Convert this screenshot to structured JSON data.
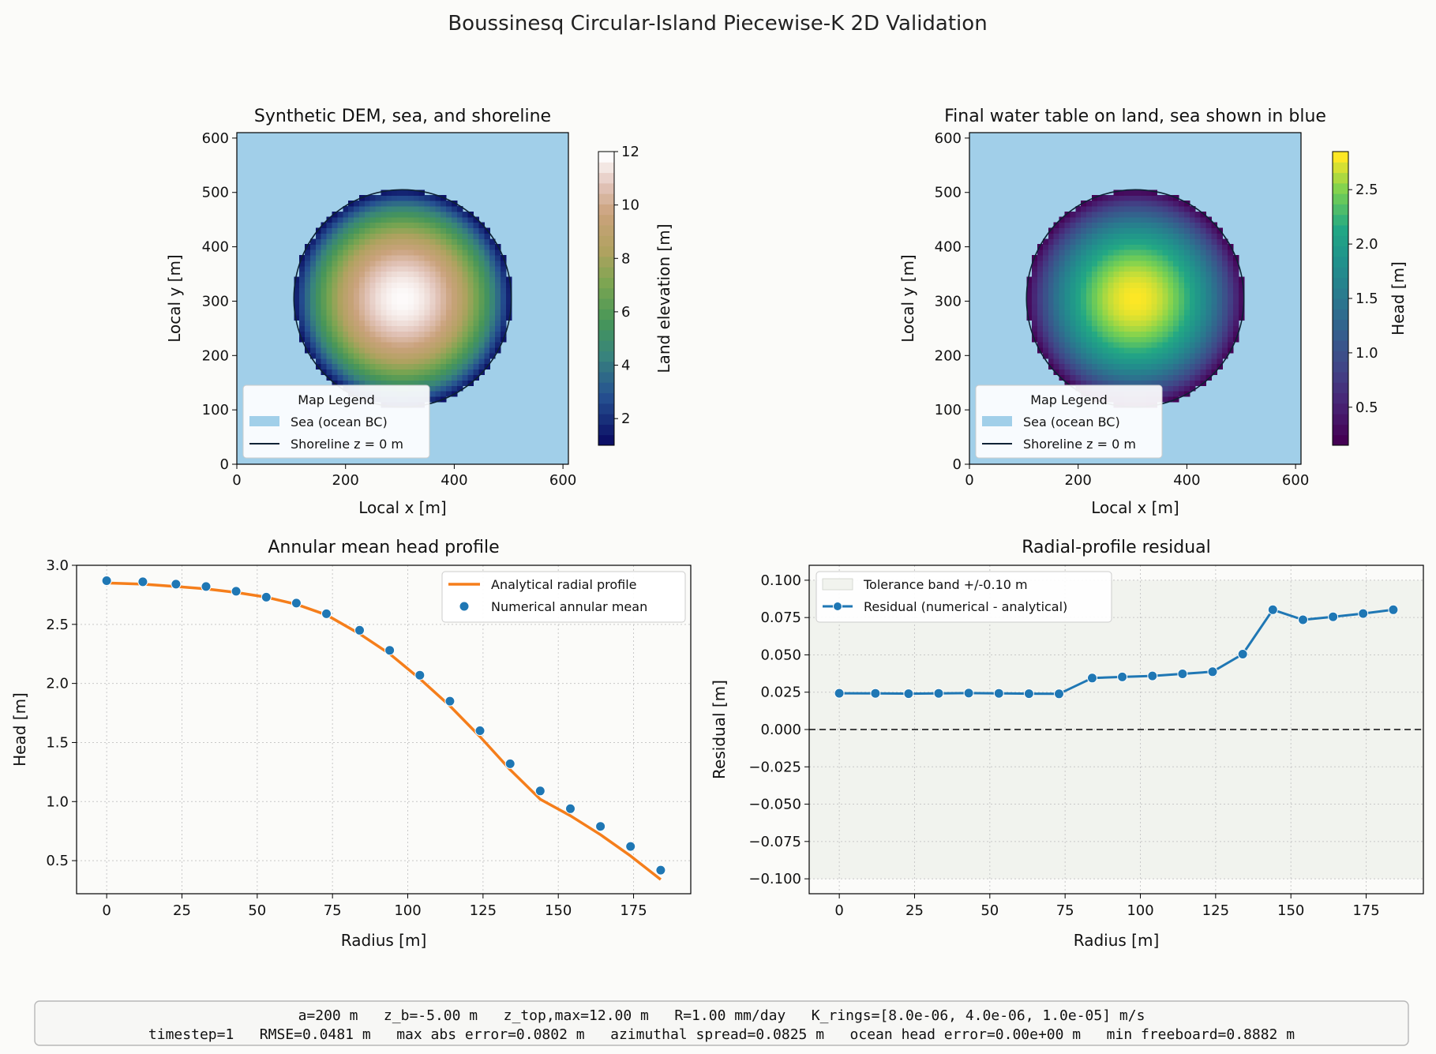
{
  "figure": {
    "title": "Boussinesq Circular-Island Piecewise-K 2D Validation",
    "background": "#fbfbf9"
  },
  "colors": {
    "sea": "#a1cfe9",
    "shoreline": "#0d2235",
    "analytical": "#f57e1b",
    "numerical": "#1f77b4",
    "zero_line": "#444444"
  },
  "legend_labels": {
    "map_title": "Map Legend",
    "sea": "Sea (ocean BC)",
    "shoreline": "Shoreline z = 0 m"
  },
  "chart_data": [
    {
      "type": "heatmap",
      "title": "Synthetic DEM, sea, and shoreline",
      "xlabel": "Local x [m]",
      "ylabel": "Local y [m]",
      "xlim": [
        0,
        610
      ],
      "ylim": [
        0,
        610
      ],
      "xticks": [
        0,
        200,
        400,
        600
      ],
      "yticks": [
        0,
        100,
        200,
        300,
        400,
        500,
        600
      ],
      "island": {
        "center": [
          305,
          305
        ],
        "radius": 200,
        "field": "Land elevation",
        "peak": 12.0,
        "edge": 1.0
      },
      "colorbar": {
        "label": "Land elevation [m]",
        "min": 1.0,
        "max": 12.0,
        "ticks": [
          2,
          4,
          6,
          8,
          10,
          12
        ],
        "colormap": "gist_earth"
      },
      "legend_position": "lower-left"
    },
    {
      "type": "heatmap",
      "title": "Final water table on land, sea shown in blue",
      "xlabel": "Local x [m]",
      "ylabel": "Local y [m]",
      "xlim": [
        0,
        610
      ],
      "ylim": [
        0,
        610
      ],
      "xticks": [
        0,
        200,
        400,
        600
      ],
      "yticks": [
        0,
        100,
        200,
        300,
        400,
        500,
        600
      ],
      "island": {
        "center": [
          305,
          305
        ],
        "radius": 200,
        "field": "Head",
        "peak": 2.85,
        "edge": 0.15
      },
      "colorbar": {
        "label": "Head [m]",
        "min": 0.15,
        "max": 2.85,
        "ticks": [
          0.5,
          1.0,
          1.5,
          2.0,
          2.5
        ],
        "colormap": "viridis"
      },
      "legend_position": "lower-left"
    },
    {
      "type": "line",
      "title": "Annular mean head profile",
      "xlabel": "Radius [m]",
      "ylabel": "Head [m]",
      "xlim": [
        -10,
        194
      ],
      "ylim": [
        0.22,
        3.0
      ],
      "xticks": [
        0,
        25,
        50,
        75,
        100,
        125,
        150,
        175
      ],
      "yticks": [
        0.5,
        1.0,
        1.5,
        2.0,
        2.5,
        3.0
      ],
      "grid": true,
      "legend_position": "top-right",
      "series": [
        {
          "name": "Analytical radial profile",
          "style": "line",
          "x": [
            0,
            12,
            23,
            33,
            43,
            53,
            63,
            73,
            84,
            94,
            104,
            114,
            124,
            134,
            144,
            154,
            164,
            174,
            184
          ],
          "y": [
            2.85,
            2.84,
            2.82,
            2.8,
            2.77,
            2.73,
            2.67,
            2.58,
            2.42,
            2.25,
            2.04,
            1.81,
            1.55,
            1.27,
            1.02,
            0.88,
            0.72,
            0.54,
            0.34
          ]
        },
        {
          "name": "Numerical annular mean",
          "style": "scatter",
          "x": [
            0,
            12,
            23,
            33,
            43,
            53,
            63,
            73,
            84,
            94,
            104,
            114,
            124,
            134,
            144,
            154,
            164,
            174,
            184
          ],
          "y": [
            2.87,
            2.86,
            2.84,
            2.82,
            2.78,
            2.73,
            2.68,
            2.59,
            2.45,
            2.28,
            2.07,
            1.85,
            1.6,
            1.32,
            1.09,
            0.94,
            0.79,
            0.62,
            0.42
          ]
        }
      ]
    },
    {
      "type": "line",
      "title": "Radial-profile residual",
      "xlabel": "Radius [m]",
      "ylabel": "Residual [m]",
      "xlim": [
        -10,
        194
      ],
      "ylim": [
        -0.11,
        0.11
      ],
      "xticks": [
        0,
        25,
        50,
        75,
        100,
        125,
        150,
        175
      ],
      "yticks": [
        -0.1,
        -0.075,
        -0.05,
        -0.025,
        0.0,
        0.025,
        0.05,
        0.075,
        0.1
      ],
      "ytick_labels": [
        "−0.100",
        "−0.075",
        "−0.050",
        "−0.025",
        "0.000",
        "0.025",
        "0.050",
        "0.075",
        "0.100"
      ],
      "tolerance_band": [
        -0.1,
        0.1
      ],
      "zero_line": 0.0,
      "grid": true,
      "legend_position": "top-left",
      "series": [
        {
          "name": "Tolerance band +/-0.10 m",
          "style": "band"
        },
        {
          "name": "Residual (numerical - analytical)",
          "style": "line-marker",
          "x": [
            0,
            12,
            23,
            33,
            43,
            53,
            63,
            73,
            84,
            94,
            104,
            114,
            124,
            134,
            144,
            154,
            164,
            174,
            184
          ],
          "y": [
            0.0243,
            0.0242,
            0.024,
            0.0242,
            0.0244,
            0.0242,
            0.024,
            0.0239,
            0.0345,
            0.0352,
            0.0359,
            0.0373,
            0.0387,
            0.0505,
            0.0802,
            0.0735,
            0.0755,
            0.0777,
            0.0802
          ]
        }
      ]
    }
  ],
  "summary": {
    "line1": "a=200 m   z_b=-5.00 m   z_top,max=12.00 m   R=1.00 mm/day   K_rings=[8.0e-06, 4.0e-06, 1.0e-05] m/s",
    "line2": "timestep=1   RMSE=0.0481 m   max abs error=0.0802 m   azimuthal spread=0.0825 m   ocean head error=0.00e+00 m   min freeboard=0.8882 m"
  }
}
